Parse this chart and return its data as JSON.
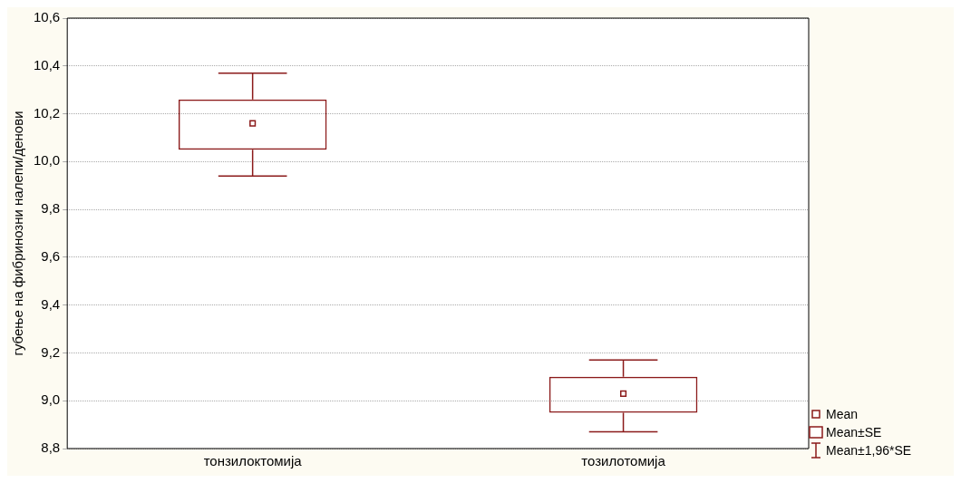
{
  "chart_data": {
    "type": "box",
    "ylabel": "губење на фибринозни налепи/денови",
    "categories": [
      "тонзилоктомија",
      "тозилотомија"
    ],
    "color": "#8b1a1a",
    "boxes": [
      {
        "low": 9.94,
        "q1": 10.05,
        "mean": 10.16,
        "q3": 10.26,
        "high": 10.37
      },
      {
        "low": 8.87,
        "q1": 8.95,
        "mean": 9.03,
        "q3": 9.1,
        "high": 9.17
      }
    ],
    "ylim": [
      8.8,
      10.6
    ],
    "yticks": [
      {
        "value": 8.8,
        "label": "8,8"
      },
      {
        "value": 9.0,
        "label": "9,0"
      },
      {
        "value": 9.2,
        "label": "9,2"
      },
      {
        "value": 9.4,
        "label": "9,4"
      },
      {
        "value": 9.6,
        "label": "9,6"
      },
      {
        "value": 9.8,
        "label": "9,8"
      },
      {
        "value": 10.0,
        "label": "10,0"
      },
      {
        "value": 10.2,
        "label": "10,2"
      },
      {
        "value": 10.4,
        "label": "10,4"
      },
      {
        "value": 10.6,
        "label": "10,6"
      }
    ],
    "grid": "y",
    "marker": "square",
    "annotations": [
      "Mean",
      "Mean±SE",
      "Mean±1,96*SE"
    ]
  }
}
